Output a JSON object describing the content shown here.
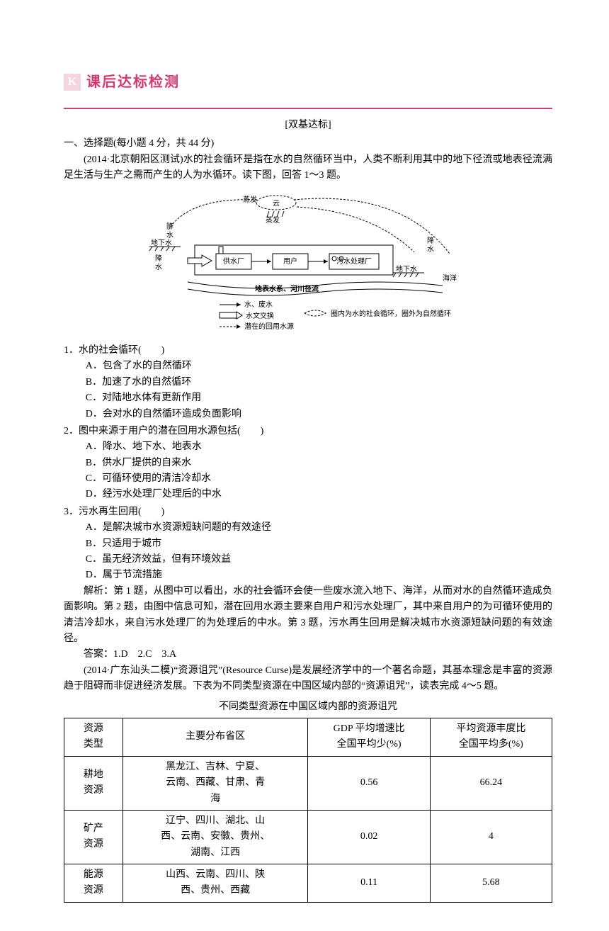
{
  "header": {
    "logo_letter": "K",
    "title": "课后达标检测",
    "logo_bg": "#f5d5dd",
    "title_color": "#d63971"
  },
  "subtitle": "[双基达标]",
  "section1_heading": "一、选择题(每小题 4 分，共 44 分)",
  "intro1": "(2014·北京朝阳区测试)水的社会循环是指在水的自然循环当中，人类不断利用其中的地下径流或地表径流满足生活与生产之需而产生的人为水循环。读下图，回答 1～3 题。",
  "diagram": {
    "labels": {
      "cloud": "云",
      "evap1": "蒸发",
      "evap2": "蒸发",
      "precip_left": "降水",
      "groundwater_left": "地下水",
      "plant": "供水厂",
      "user": "用户",
      "sewage_plant": "污水处理厂",
      "precip_right": "降水",
      "groundwater_right": "地下水",
      "ocean": "海洋",
      "river_label": "地表水系、河川径流",
      "legend_water": "水、废水",
      "legend_hydro": "水文交换",
      "legend_reuse": "潜在的回用水源",
      "legend_circle": "圈内为水的社会循环，圈外为自然循环"
    }
  },
  "q1": {
    "stem": "1．水的社会循环(　　)",
    "A": "A．包含了水的自然循环",
    "B": "B．加速了水的自然循环",
    "C": "C．对陆地水体有更新作用",
    "D": "D．会对水的自然循环造成负面影响"
  },
  "q2": {
    "stem": "2．图中来源于用户的潜在回用水源包括(　　)",
    "A": "A．降水、地下水、地表水",
    "B": "B．供水厂提供的自来水",
    "C": "C．可循环使用的清洁冷却水",
    "D": "D．经污水处理厂处理后的中水"
  },
  "q3": {
    "stem": "3．污水再生回用(　　)",
    "A": "A．是解决城市水资源短缺问题的有效途径",
    "B": "B．只适用于城市",
    "C": "C．虽无经济效益，但有环境效益",
    "D": "D．属于节流措施"
  },
  "analysis1": "解析：第 1 题，从图中可以看出，水的社会循环会使一些废水流入地下、海洋，从而对水的自然循环造成负面影响。第 2 题，由图中信息可知，潜在回用水源主要来自用户和污水处理厂，其中来自用户的为可循环使用的清洁冷却水，来自污水处理厂的为处理后的中水。第 3 题，污水再生回用是解决城市水资源短缺问题的有效途径。",
  "answers1": "答案：1.D　2.C　3.A",
  "intro2": "(2014·广东汕头二模)“资源诅咒”(Resource Curse)是发展经济学中的一个著名命题，其基本理念是丰富的资源趋于阻碍而非促进经济发展。下表为不同类型资源在中国区域内部的“资源诅咒”，读表完成 4～5 题。",
  "table_caption": "不同类型资源在中国区域内部的资源诅咒",
  "table": {
    "columns": [
      "资源\n类型",
      "主要分布省区",
      "GDP 平均增速比\n全国平均少(%)",
      "平均资源丰度比\n全国平均多(%)"
    ],
    "rows": [
      [
        "耕地\n资源",
        "黑龙江、吉林、宁夏、\n云南、西藏、甘肃、青\n海",
        "0.56",
        "66.24"
      ],
      [
        "矿产\n资源",
        "辽宁、四川、湖北、山\n西、云南、安徽、贵州、\n湖南、江西",
        "0.02",
        "4"
      ],
      [
        "能源\n资源",
        "山西、云南、四川、陕\n西、贵州、西藏",
        "0.11",
        "5.68"
      ]
    ],
    "col_widths": [
      "12%",
      "38%",
      "25%",
      "25%"
    ]
  }
}
